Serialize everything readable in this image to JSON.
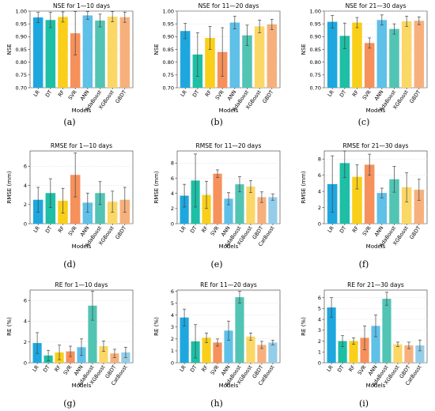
{
  "panel_letters": [
    "(a)",
    "(b)",
    "(c)",
    "(d)",
    "(e)",
    "(f)",
    "(g)",
    "(h)",
    "(i)"
  ],
  "palette": [
    "#1ea7df",
    "#1dbfa5",
    "#f9cf1a",
    "#f6915c",
    "#5fc0e8",
    "#52c4b3",
    "#fbd765",
    "#f7b07c",
    "#94cde8"
  ],
  "chart_data": [
    {
      "type": "bar",
      "title": "NSE for 1—10 days",
      "xlabel": "Models",
      "ylabel": "NSE",
      "categories": [
        "LR",
        "DT",
        "RF",
        "SVR",
        "ANN",
        "AdaBoost",
        "XGBoost",
        "GBDT"
      ],
      "values": [
        0.975,
        0.965,
        0.977,
        0.913,
        0.983,
        0.963,
        0.978,
        0.976
      ],
      "errors": [
        0.02,
        0.03,
        0.02,
        0.085,
        0.015,
        0.025,
        0.02,
        0.02
      ],
      "ylim": [
        0.7,
        1.0
      ],
      "yticks": [
        "0.70",
        "0.75",
        "0.80",
        "0.85",
        "0.90",
        "0.95",
        "1.00"
      ],
      "grid": true
    },
    {
      "type": "bar",
      "title": "NSE for 11—20 days",
      "xlabel": "Models",
      "ylabel": "NSE",
      "categories": [
        "LR",
        "DT",
        "RF",
        "SVR",
        "ANN",
        "AdaBoost",
        "XGBoost",
        "GBDT"
      ],
      "values": [
        0.922,
        0.83,
        0.895,
        0.84,
        0.955,
        0.905,
        0.94,
        0.948
      ],
      "errors": [
        0.03,
        0.085,
        0.045,
        0.095,
        0.025,
        0.04,
        0.025,
        0.02
      ],
      "ylim": [
        0.7,
        1.0
      ],
      "yticks": [
        "0.70",
        "0.75",
        "0.80",
        "0.85",
        "0.90",
        "0.95",
        "1.00"
      ],
      "grid": true
    },
    {
      "type": "bar",
      "title": "NSE for 21—30 days",
      "xlabel": "Models",
      "ylabel": "NSE",
      "categories": [
        "LR",
        "DT",
        "RF",
        "SVR",
        "ANN",
        "AdaBoost",
        "XGBoost",
        "GBDT"
      ],
      "values": [
        0.958,
        0.903,
        0.955,
        0.875,
        0.965,
        0.93,
        0.96,
        0.962
      ],
      "errors": [
        0.025,
        0.05,
        0.02,
        0.02,
        0.02,
        0.02,
        0.02,
        0.015
      ],
      "ylim": [
        0.7,
        1.0
      ],
      "yticks": [
        "0.70",
        "0.75",
        "0.80",
        "0.85",
        "0.90",
        "0.95",
        "1.00"
      ],
      "grid": true
    },
    {
      "type": "bar",
      "title": "RMSE for 1—10 days",
      "xlabel": "Models",
      "ylabel": "RMSE (mm)",
      "categories": [
        "LR",
        "DT",
        "RF",
        "SVR",
        "ANN",
        "AdaBoost",
        "XGBoost",
        "GBDT"
      ],
      "values": [
        2.5,
        3.2,
        2.4,
        5.1,
        2.2,
        3.2,
        2.3,
        2.5
      ],
      "errors": [
        1.3,
        1.5,
        1.3,
        2.3,
        1.0,
        1.2,
        1.1,
        1.3
      ],
      "ylim": [
        0,
        7.6
      ],
      "yticks": [
        "0",
        "2",
        "4",
        "6"
      ],
      "grid": true
    },
    {
      "type": "bar",
      "title": "RMSE for 11—20 days",
      "xlabel": "Models",
      "ylabel": "RMSE (mm)",
      "categories": [
        "LR",
        "DT",
        "RF",
        "SVR",
        "ANN",
        "AdaBoost",
        "XGBoost",
        "GBDT",
        "CatBoost"
      ],
      "values": [
        3.7,
        5.7,
        3.8,
        6.6,
        3.3,
        5.2,
        4.9,
        3.5,
        3.5
      ],
      "errors": [
        1.5,
        3.5,
        1.8,
        0.5,
        0.8,
        1.0,
        0.8,
        0.7,
        0.4
      ],
      "ylim": [
        0,
        9.6
      ],
      "yticks": [
        "0",
        "2",
        "4",
        "6",
        "8"
      ],
      "grid": true
    },
    {
      "type": "bar",
      "title": "RMSE for 21—30 days",
      "xlabel": "Models",
      "ylabel": "RMSE (mm)",
      "categories": [
        "LR",
        "DT",
        "RF",
        "SVR",
        "ANN",
        "AdaBoost",
        "XGBoost",
        "GBDT"
      ],
      "values": [
        4.9,
        7.5,
        5.8,
        7.3,
        3.8,
        5.5,
        4.5,
        4.2
      ],
      "errors": [
        3.5,
        1.8,
        1.5,
        1.3,
        0.6,
        1.6,
        1.8,
        1.3
      ],
      "ylim": [
        0,
        9
      ],
      "yticks": [
        "0",
        "2",
        "4",
        "6",
        "8"
      ],
      "grid": true
    },
    {
      "type": "bar",
      "title": "RE for 1—10 days",
      "xlabel": "Models",
      "ylabel": "RE (%)",
      "categories": [
        "LR",
        "DT",
        "RF",
        "SVR",
        "ANN",
        "AdaBoost",
        "XGBoost",
        "GBDT",
        "CatBoost"
      ],
      "values": [
        1.9,
        0.7,
        1.0,
        1.1,
        1.5,
        5.5,
        1.6,
        0.9,
        1.0
      ],
      "errors": [
        1.0,
        0.5,
        0.7,
        0.5,
        0.8,
        1.4,
        0.5,
        0.4,
        0.5
      ],
      "ylim": [
        0,
        7
      ],
      "yticks": [
        "0",
        "2",
        "4",
        "6"
      ],
      "grid": true
    },
    {
      "type": "bar",
      "title": "RE for 11—20 days",
      "xlabel": "Models",
      "ylabel": "RE (%)",
      "categories": [
        "LR",
        "DT",
        "RF",
        "SVR",
        "ANN",
        "AdaBoost",
        "XGBoost",
        "GBDT",
        "CatBoost"
      ],
      "values": [
        3.8,
        1.8,
        2.1,
        1.7,
        2.7,
        5.5,
        2.2,
        1.5,
        1.7
      ],
      "errors": [
        0.7,
        1.4,
        0.4,
        0.3,
        0.8,
        0.5,
        0.3,
        0.3,
        0.2
      ],
      "ylim": [
        0,
        6.1
      ],
      "yticks": [
        "0",
        "1",
        "2",
        "3",
        "4",
        "5",
        "6"
      ],
      "grid": true
    },
    {
      "type": "bar",
      "title": "RE for 21—30 days",
      "xlabel": "Models",
      "ylabel": "RE (%)",
      "categories": [
        "LR",
        "DT",
        "RF",
        "SVR",
        "ANN",
        "AdaBoost",
        "XGBoost",
        "GBDT",
        "CatBoost"
      ],
      "values": [
        5.1,
        2.0,
        2.0,
        2.3,
        3.4,
        5.9,
        1.7,
        1.6,
        1.6
      ],
      "errors": [
        0.9,
        0.5,
        0.3,
        1.1,
        1.0,
        0.6,
        0.2,
        0.3,
        0.5
      ],
      "ylim": [
        0,
        6.7
      ],
      "yticks": [
        "0",
        "1",
        "2",
        "3",
        "4",
        "5",
        "6"
      ],
      "grid": true
    }
  ]
}
